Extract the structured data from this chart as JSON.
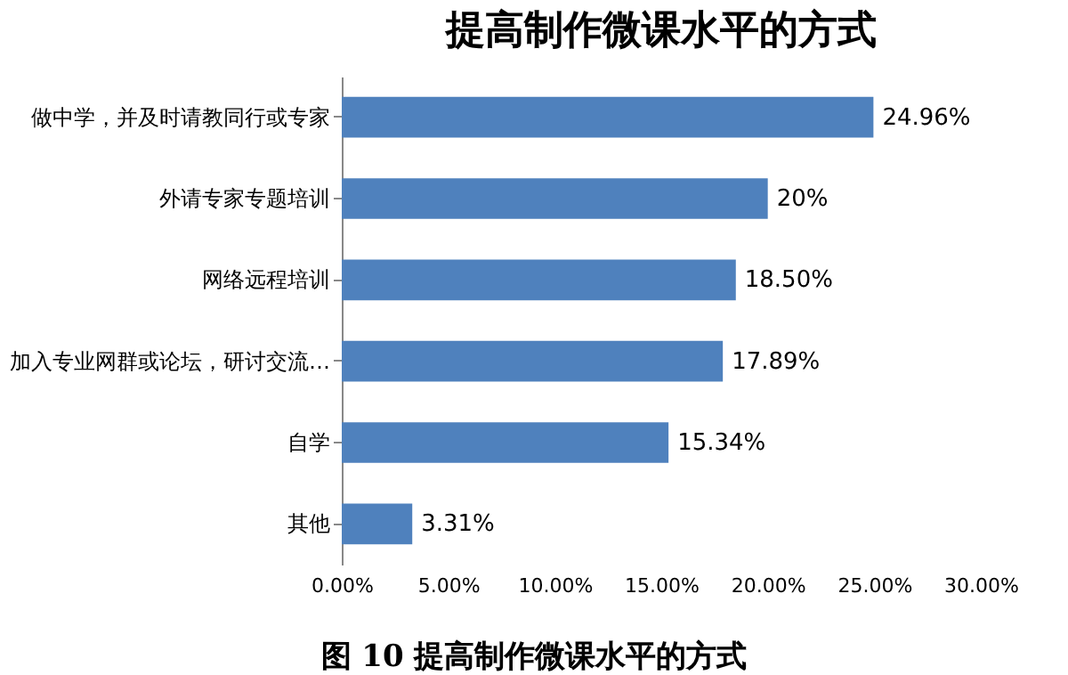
{
  "chart_data": {
    "type": "bar",
    "orientation": "horizontal",
    "title": "提高制作微课水平的方式",
    "categories": [
      "做中学，并及时请教同行或专家",
      "外请专家专题培训",
      "网络远程培训",
      "加入专业网群或论坛，研讨交流…",
      "自学",
      "其他"
    ],
    "values": [
      24.96,
      20,
      18.5,
      17.89,
      15.34,
      3.31
    ],
    "value_labels": [
      "24.96%",
      "20%",
      "18.50%",
      "17.89%",
      "15.34%",
      "3.31%"
    ],
    "color": "#4f81bd",
    "xlim": [
      0,
      30
    ],
    "xticks": [
      {
        "value": 0,
        "label": "0.00%"
      },
      {
        "value": 5,
        "label": "5.00%"
      },
      {
        "value": 10,
        "label": "10.00%"
      },
      {
        "value": 15,
        "label": "15.00%"
      },
      {
        "value": 20,
        "label": "20.00%"
      },
      {
        "value": 25,
        "label": "25.00%"
      },
      {
        "value": 30,
        "label": "30.00%"
      }
    ],
    "grid": false,
    "annotations": [
      "图 10  提高制作微课水平的方式"
    ]
  }
}
